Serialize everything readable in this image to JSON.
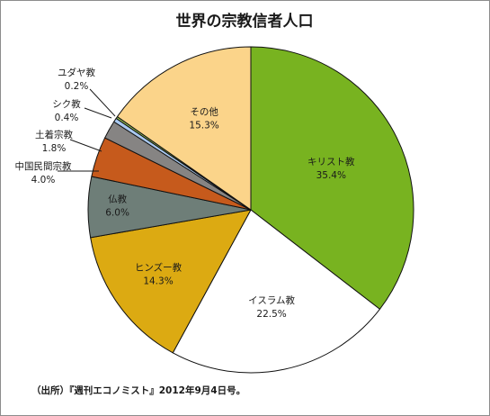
{
  "chart_data": {
    "type": "pie",
    "title": "世界の宗教信者人口",
    "source_note": "（出所）『週刊エコノミスト』2012年9月4日号。",
    "slices": [
      {
        "name": "キリスト教",
        "value": 35.4,
        "value_label": "35.4%",
        "color": "#78b320"
      },
      {
        "name": "イスラム教",
        "value": 22.5,
        "value_label": "22.5%",
        "color": "#ffffff"
      },
      {
        "name": "ヒンズー教",
        "value": 14.3,
        "value_label": "14.3%",
        "color": "#dcaa12"
      },
      {
        "name": "仏教",
        "value": 6.0,
        "value_label": "6.0%",
        "color": "#6e7e78"
      },
      {
        "name": "中国民間宗教",
        "value": 4.0,
        "value_label": "4.0%",
        "color": "#c65a1c"
      },
      {
        "name": "土着宗教",
        "value": 1.8,
        "value_label": "1.8%",
        "color": "#868483"
      },
      {
        "name": "シク教",
        "value": 0.4,
        "value_label": "0.4%",
        "color": "#a9c9f0"
      },
      {
        "name": "ユダヤ教",
        "value": 0.2,
        "value_label": "0.2%",
        "color": "#9bcc55"
      },
      {
        "name": "その他",
        "value": 15.3,
        "value_label": "15.3%",
        "color": "#fbd48a"
      }
    ]
  }
}
